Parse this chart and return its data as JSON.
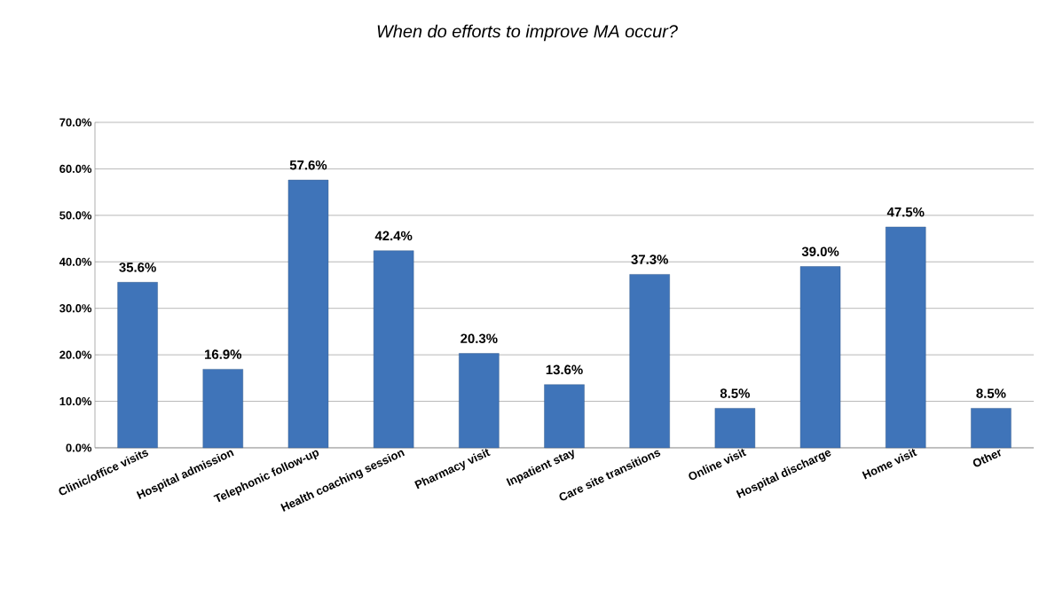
{
  "chart_data": {
    "type": "bar",
    "title": "When do efforts to improve MA occur?",
    "categories": [
      "Clinic/office visits",
      "Hospital admission",
      "Telephonic follow-up",
      "Health coaching session",
      "Pharmacy visit",
      "Inpatient stay",
      "Care site transitions",
      "Online visit",
      "Hospital discharge",
      "Home visit",
      "Other"
    ],
    "values": [
      35.6,
      16.9,
      57.6,
      42.4,
      20.3,
      13.6,
      37.3,
      8.5,
      39.0,
      47.5,
      8.5
    ],
    "value_labels": [
      "35.6%",
      "16.9%",
      "57.6%",
      "42.4%",
      "20.3%",
      "13.6%",
      "37.3%",
      "8.5%",
      "39.0%",
      "47.5%",
      "8.5%"
    ],
    "color": "#3f74b9",
    "ylim": [
      0,
      70
    ],
    "yticks": [
      {
        "value": 0,
        "label": "0.0%"
      },
      {
        "value": 10,
        "label": "10.0%"
      },
      {
        "value": 20,
        "label": "20.0%"
      },
      {
        "value": 30,
        "label": "30.0%"
      },
      {
        "value": 40,
        "label": "40.0%"
      },
      {
        "value": 50,
        "label": "50.0%"
      },
      {
        "value": 60,
        "label": "60.0%"
      },
      {
        "value": 70,
        "label": "70.0%"
      }
    ],
    "grid": "y"
  }
}
